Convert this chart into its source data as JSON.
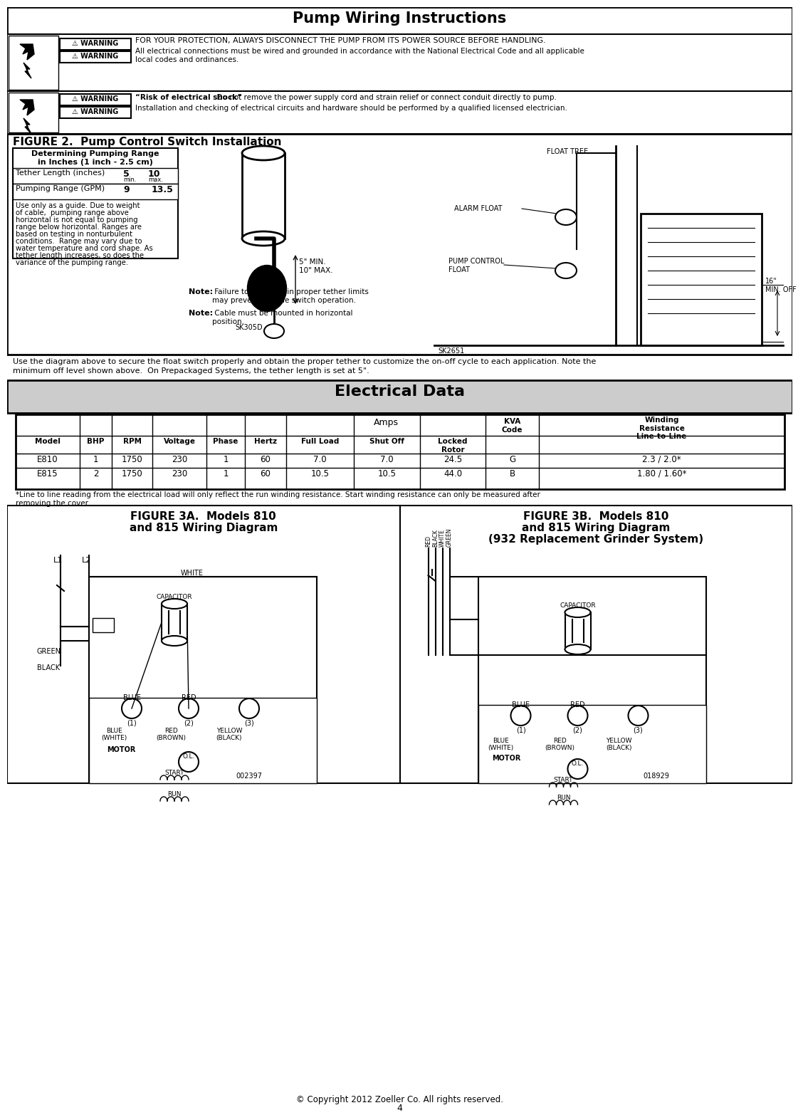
{
  "title": "Pump Wiring Instructions",
  "warning_text_1a": "FOR YOUR PROTECTION, ALWAYS DISCONNECT THE PUMP FROM ITS POWER SOURCE BEFORE HANDLING.",
  "warning_text_1b": "All electrical connections must be wired and grounded in accordance with the National Electrical Code and all applicable\nlocal codes and ordinances.",
  "warning_text_2a_bold": "“Risk of electrical shock”",
  "warning_text_2a": "  Do not remove the power supply cord and strain relief or connect conduit directly to pump.",
  "warning_text_2b": "Installation and checking of electrical circuits and hardware should be performed by a qualified licensed electrician.",
  "figure2_title": "FIGURE 2.  Pump Control Switch Installation",
  "table1_title1": "Determining Pumping Range",
  "table1_title2": "in Inches (1 inch - 2.5 cm)",
  "table1_row1_label": "Tether Length (inches)",
  "table1_row1_v1": "5",
  "table1_row1_v2": "10",
  "table1_row1_sub1": "min.",
  "table1_row1_sub2": "max.",
  "table1_row2_label": "Pumping Range (GPM)",
  "table1_row2_v1": "9",
  "table1_row2_v2": "13.5",
  "table1_note_lines": [
    "Use only as a guide. Due to weight",
    "of cable,  pumping range above",
    "horizontal is not equal to pumping",
    "range below horizontal. Ranges are",
    "based on testing in nonturbulent",
    "conditions.  Range may vary due to",
    "water temperature and cord shape. As",
    "tether length increases, so does the",
    "variance of the pumping range."
  ],
  "fig2_sk305d": "SK305D",
  "fig2_5min": "5\" MIN.\n10\" MAX.",
  "fig2_floattree": "FLOAT TREE",
  "fig2_alarmfloat": "ALARM FLOAT",
  "fig2_pumpcontrol": "PUMP CONTROL\nFLOAT",
  "fig2_sk2651": "SK2651",
  "fig2_16min": "16\"\nMIN. OFF",
  "note1_bold": "Note:",
  "note1_text": " Failure to keep within proper tether limits\nmay prevent reliable switch operation.",
  "note2_bold": "Note:",
  "note2_text": " Cable must be mounted in horizontal\nposition.",
  "para1": "Use the diagram above to secure the float switch properly and obtain the proper tether to customize the on-off cycle to each application. Note the",
  "para2": "minimum off level shown above.  On Prepackaged Systems, the tether length is set at 5\".",
  "elec_title": "Electrical Data",
  "tbl_amps": "Amps",
  "tbl_h0": "Model",
  "tbl_h1": "BHP",
  "tbl_h2": "RPM",
  "tbl_h3": "Voltage",
  "tbl_h4": "Phase",
  "tbl_h5": "Hertz",
  "tbl_h6": "Full Load",
  "tbl_h7": "Shut Off",
  "tbl_h8": "Locked\nRotor",
  "tbl_h9": "KVA\nCode",
  "tbl_h10": "Winding\nResistance\nLine-to-Line",
  "tbl_r1": [
    "E810",
    "1",
    "1750",
    "230",
    "1",
    "60",
    "7.0",
    "7.0",
    "24.5",
    "G",
    "2.3 / 2.0*"
  ],
  "tbl_r2": [
    "E815",
    "2",
    "1750",
    "230",
    "1",
    "60",
    "10.5",
    "10.5",
    "44.0",
    "B",
    "1.80 / 1.60*"
  ],
  "footnote1": "*Line to line reading from the electrical load will only reflect the run winding resistance. Start winding resistance can only be measured after",
  "footnote2": "removing the cover.",
  "fig3a_title1": "FIGURE 3A.  Models 810",
  "fig3a_title2": "and 815 Wiring Diagram",
  "fig3b_title1": "FIGURE 3B.  Models 810",
  "fig3b_title2": "and 815 Wiring Diagram",
  "fig3b_title3": "(932 Replacement Grinder System)",
  "code3a": "002397",
  "code3b": "018929",
  "copyright": "© Copyright 2012 Zoeller Co. All rights reserved.",
  "pagenum": "4"
}
